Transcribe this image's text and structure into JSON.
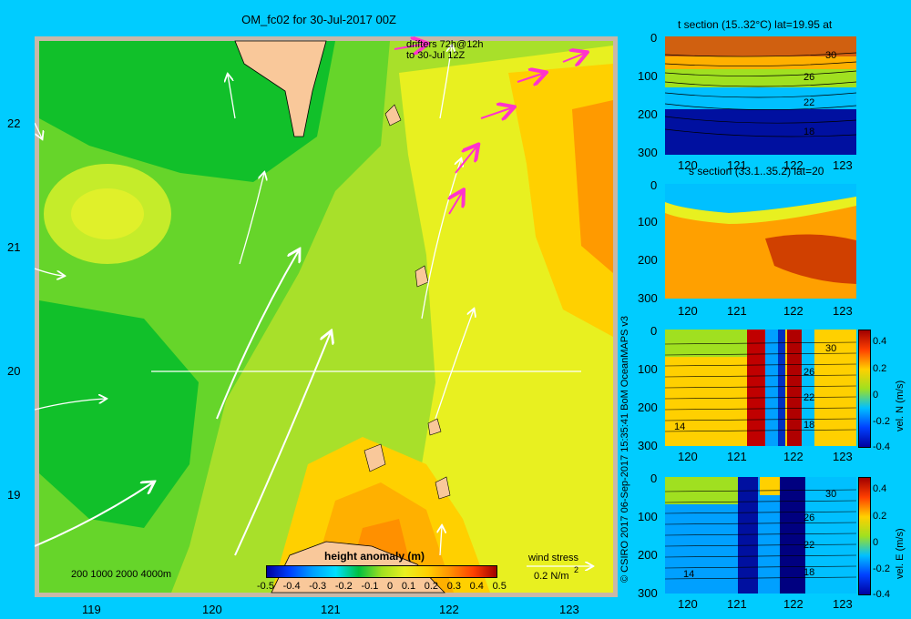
{
  "title": "OM_fc02 for 30-Jul-2017 00Z",
  "map": {
    "x_ticks": [
      "119",
      "120",
      "121",
      "122",
      "123"
    ],
    "y_ticks": [
      "22",
      "21",
      "20",
      "19"
    ],
    "drifters_line1": "drifters 72h@12h",
    "drifters_line2": "to 30-Jul 12Z",
    "depth_legend": "200  1000  2000  4000m",
    "colorbar_title": "height anomaly (m)",
    "colorbar_ticks": [
      "-0.5",
      "-0.4",
      "-0.3",
      "-0.2",
      "-0.1",
      "0",
      "0.1",
      "0.2",
      "0.3",
      "0.4",
      "0.5"
    ],
    "wind_label": "wind stress",
    "wind_value": "0.2 N/m",
    "wind_superscript": "2",
    "colors": {
      "land": "#f9c89a",
      "background": "#00ccff",
      "frame": "#c8b8a8",
      "drifter": "#ff33cc"
    }
  },
  "side_caption": "© CSIRO 2017   06-Sep-2017 15:35:41 BoM OceanMAPS v3",
  "panels": [
    {
      "title": "t section (15..32°C) lat=19.95 at",
      "contours": [
        "30",
        "26",
        "22",
        "18"
      ],
      "x_ticks": [
        "120",
        "121",
        "122",
        "123"
      ],
      "y_ticks": [
        "0",
        "100",
        "200",
        "300"
      ]
    },
    {
      "title": "s section (33.1..35.2) lat=20",
      "x_ticks": [
        "120",
        "121",
        "122",
        "123"
      ],
      "y_ticks": [
        "0",
        "100",
        "200",
        "300"
      ]
    },
    {
      "title": "",
      "contours": [
        "30",
        "26",
        "22",
        "18",
        "14"
      ],
      "x_ticks": [
        "120",
        "121",
        "122",
        "123"
      ],
      "y_ticks": [
        "0",
        "100",
        "200",
        "300"
      ],
      "cbar_ticks": [
        "0.4",
        "0.2",
        "0",
        "-0.2",
        "-0.4"
      ],
      "cbar_label": "vel. N (m/s)"
    },
    {
      "title": "",
      "contours": [
        "30",
        "26",
        "22",
        "18",
        "14"
      ],
      "x_ticks": [
        "120",
        "121",
        "122",
        "123"
      ],
      "y_ticks": [
        "0",
        "100",
        "200",
        "300"
      ],
      "cbar_ticks": [
        "0.4",
        "0.2",
        "0",
        "-0.2",
        "-0.4"
      ],
      "cbar_label": "vel. E (m/s)"
    }
  ]
}
